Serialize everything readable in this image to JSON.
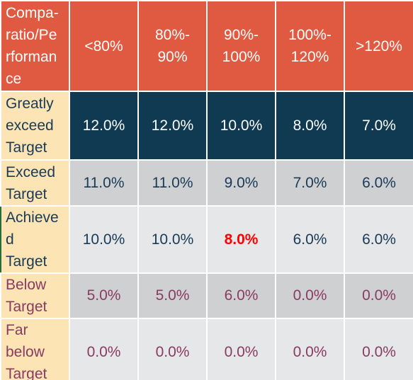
{
  "table": {
    "corner_label": "Compa-\nratio/Pe\nrforman\nce",
    "columns": [
      "<80%",
      "80%-\n90%",
      "90%-\n100%",
      "100%-\n120%",
      ">120%"
    ],
    "rows": [
      {
        "label": "Greatly\nexceed\nTarget",
        "values": [
          "12.0%",
          "12.0%",
          "10.0%",
          "8.0%",
          "7.0%"
        ]
      },
      {
        "label": "Exceed\nTarget",
        "values": [
          "11.0%",
          "11.0%",
          "9.0%",
          "7.0%",
          "6.0%"
        ]
      },
      {
        "label": "Achieve\nd\nTarget",
        "values": [
          "10.0%",
          "10.0%",
          "8.0%",
          "6.0%",
          "6.0%"
        ]
      },
      {
        "label": "Below\nTarget",
        "values": [
          "5.0%",
          "5.0%",
          "6.0%",
          "0.0%",
          "0.0%"
        ]
      },
      {
        "label": "Far\nbelow\nTarget",
        "values": [
          "0.0%",
          "0.0%",
          "0.0%",
          "0.0%",
          "0.0%"
        ]
      }
    ]
  },
  "colors": {
    "header_bg": "#E05A41",
    "header_text": "#FFFFFF",
    "greatly_bg": "#0F3A52",
    "label_bg": "#FCE4B4",
    "gray_dark": "#CFD0D2",
    "gray_light": "#E6E7E8",
    "navy_text": "#1A3A55",
    "plum_text": "#8B3A62",
    "highlight_text": "#FF0000"
  }
}
